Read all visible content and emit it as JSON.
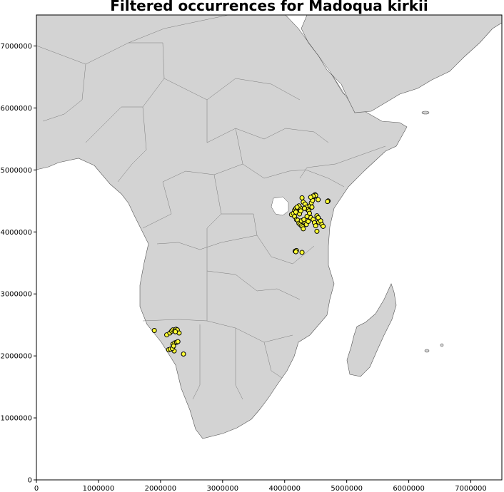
{
  "chart_data": {
    "type": "scatter",
    "title": "Filtered occurrences for Madoqua kirkii",
    "xlabel": "",
    "ylabel": "",
    "xlim": [
      0,
      7500000
    ],
    "ylim": [
      0,
      7500000
    ],
    "x_ticks": [
      0,
      1000000,
      2000000,
      3000000,
      4000000,
      5000000,
      6000000,
      7000000
    ],
    "x_tick_labels": [
      "0",
      "1000000",
      "2000000",
      "3000000",
      "4000000",
      "5000000",
      "6000000",
      "7000000"
    ],
    "y_ticks": [
      0,
      1000000,
      2000000,
      3000000,
      4000000,
      5000000,
      6000000,
      7000000
    ],
    "y_tick_labels": [
      "0",
      "1000000",
      "2000000",
      "3000000",
      "4000000",
      "5000000",
      "6000000",
      "7000000"
    ],
    "grid": false,
    "background_map": "Africa country boundaries (light gray land)",
    "marker_color": "#ffff33",
    "marker_edge_color": "#000000",
    "land_color": "#d3d3d3",
    "points": [
      [
        1900000,
        2410000
      ],
      [
        2100000,
        2340000
      ],
      [
        2150000,
        2370000
      ],
      [
        2180000,
        2400000
      ],
      [
        2200000,
        2420000
      ],
      [
        2230000,
        2410000
      ],
      [
        2250000,
        2430000
      ],
      [
        2270000,
        2420000
      ],
      [
        2300000,
        2370000
      ],
      [
        2240000,
        2390000
      ],
      [
        2130000,
        2100000
      ],
      [
        2160000,
        2110000
      ],
      [
        2200000,
        2190000
      ],
      [
        2230000,
        2210000
      ],
      [
        2260000,
        2220000
      ],
      [
        2280000,
        2230000
      ],
      [
        2220000,
        2080000
      ],
      [
        2370000,
        2030000
      ],
      [
        2190000,
        2120000
      ],
      [
        2210000,
        2160000
      ],
      [
        4170000,
        3690000
      ],
      [
        4190000,
        3700000
      ],
      [
        4280000,
        3670000
      ],
      [
        4180000,
        3680000
      ],
      [
        4110000,
        4280000
      ],
      [
        4140000,
        4300000
      ],
      [
        4160000,
        4350000
      ],
      [
        4180000,
        4380000
      ],
      [
        4200000,
        4360000
      ],
      [
        4220000,
        4320000
      ],
      [
        4240000,
        4290000
      ],
      [
        4160000,
        4250000
      ],
      [
        4190000,
        4200000
      ],
      [
        4210000,
        4190000
      ],
      [
        4230000,
        4140000
      ],
      [
        4250000,
        4120000
      ],
      [
        4270000,
        4100000
      ],
      [
        4290000,
        4080000
      ],
      [
        4300000,
        4050000
      ],
      [
        4330000,
        4150000
      ],
      [
        4350000,
        4120000
      ],
      [
        4380000,
        4170000
      ],
      [
        4420000,
        4230000
      ],
      [
        4460000,
        4200000
      ],
      [
        4480000,
        4150000
      ],
      [
        4500000,
        4100000
      ],
      [
        4520000,
        4010000
      ],
      [
        4550000,
        4160000
      ],
      [
        4580000,
        4180000
      ],
      [
        4600000,
        4120000
      ],
      [
        4620000,
        4090000
      ],
      [
        4520000,
        4260000
      ],
      [
        4540000,
        4230000
      ],
      [
        4280000,
        4550000
      ],
      [
        4300000,
        4480000
      ],
      [
        4330000,
        4450000
      ],
      [
        4350000,
        4400000
      ],
      [
        4370000,
        4360000
      ],
      [
        4390000,
        4340000
      ],
      [
        4410000,
        4420000
      ],
      [
        4430000,
        4470000
      ],
      [
        4450000,
        4510000
      ],
      [
        4470000,
        4570000
      ],
      [
        4490000,
        4600000
      ],
      [
        4500000,
        4590000
      ],
      [
        4540000,
        4520000
      ],
      [
        4700000,
        4500000
      ],
      [
        4690000,
        4490000
      ],
      [
        4250000,
        4390000
      ],
      [
        4230000,
        4420000
      ],
      [
        4200000,
        4400000
      ],
      [
        4180000,
        4320000
      ],
      [
        4260000,
        4340000
      ],
      [
        4320000,
        4380000
      ],
      [
        4440000,
        4400000
      ],
      [
        4400000,
        4300000
      ],
      [
        4270000,
        4180000
      ],
      [
        4310000,
        4200000
      ],
      [
        4360000,
        4250000
      ],
      [
        4460000,
        4580000
      ],
      [
        4420000,
        4560000
      ]
    ]
  }
}
